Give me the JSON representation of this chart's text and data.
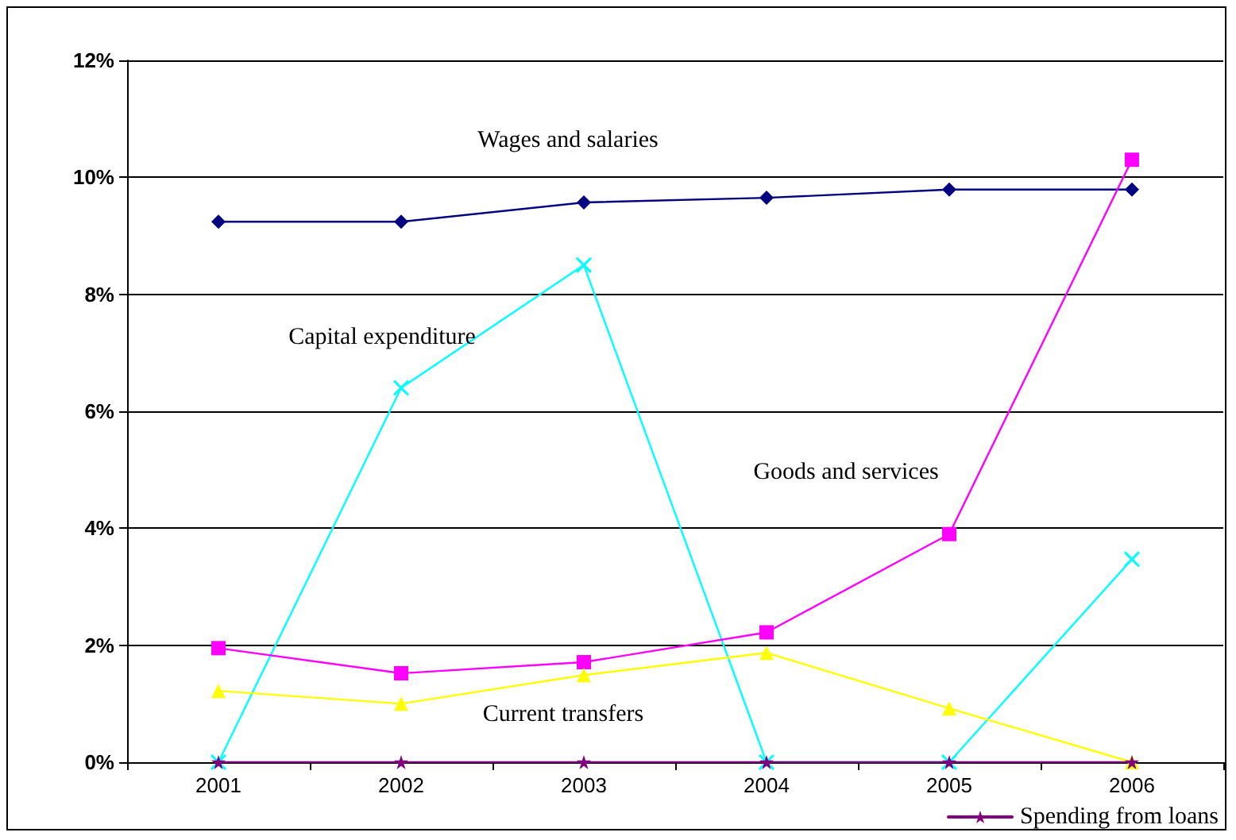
{
  "chart_data": {
    "type": "line",
    "categories": [
      "2001",
      "2002",
      "2003",
      "2004",
      "2005",
      "2006"
    ],
    "series": [
      {
        "name": "Wages and salaries",
        "color": "#000080",
        "marker": "diamond",
        "values": [
          9.24,
          9.24,
          9.57,
          9.65,
          9.79,
          9.79
        ]
      },
      {
        "name": "Capital expenditure",
        "color": "#00ffff",
        "marker": "cross",
        "values": [
          0,
          6.4,
          8.5,
          0,
          0,
          3.47
        ]
      },
      {
        "name": "Goods and services",
        "color": "#ff00ff",
        "marker": "square",
        "values": [
          1.95,
          1.52,
          1.71,
          2.22,
          3.9,
          10.3
        ]
      },
      {
        "name": "Current transfers",
        "color": "#ffff00",
        "marker": "triangle",
        "values": [
          1.22,
          1.0,
          1.49,
          1.87,
          0.92,
          0
        ]
      },
      {
        "name": "Spending from loans",
        "color": "#800080",
        "marker": "star",
        "values": [
          0,
          0,
          0,
          0,
          0,
          0
        ]
      }
    ],
    "ylim": [
      0,
      12
    ],
    "yticks": [
      {
        "value": 0,
        "label": "0%"
      },
      {
        "value": 2,
        "label": "2%"
      },
      {
        "value": 4,
        "label": "4%"
      },
      {
        "value": 6,
        "label": "6%"
      },
      {
        "value": 8,
        "label": "8%"
      },
      {
        "value": 10,
        "label": "10%"
      },
      {
        "value": 12,
        "label": "12%"
      }
    ],
    "grid": "y",
    "legend": "bottom right"
  }
}
